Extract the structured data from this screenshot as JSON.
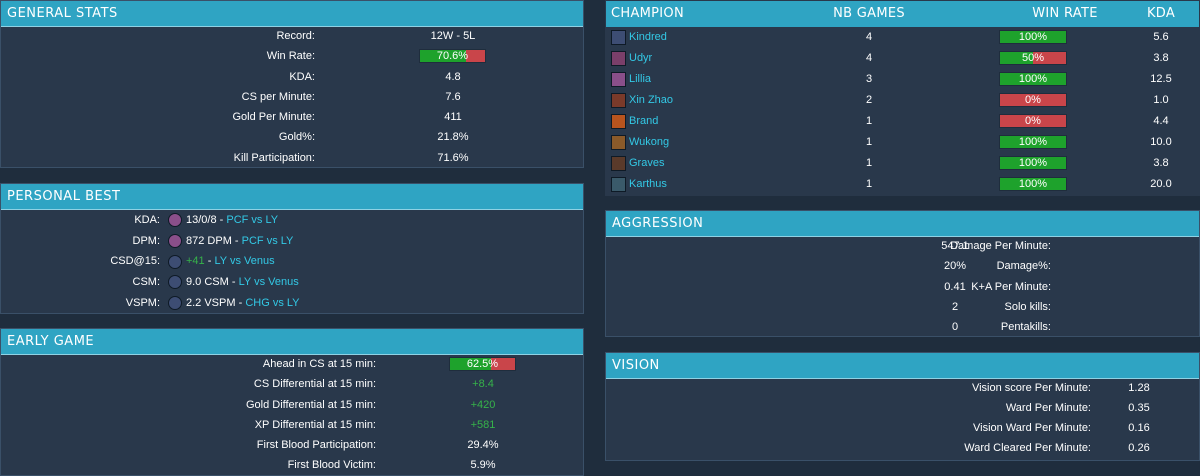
{
  "general": {
    "title": "GENERAL STATS",
    "rows": [
      {
        "label": "Record:",
        "value": "12W - 5L"
      },
      {
        "label": "Win Rate:",
        "value": "70.6%",
        "bar": true,
        "fraction": 0.706
      },
      {
        "label": "KDA:",
        "value": "4.8"
      },
      {
        "label": "CS per Minute:",
        "value": "7.6"
      },
      {
        "label": "Gold Per Minute:",
        "value": "411"
      },
      {
        "label": "Gold%:",
        "value": "21.8%"
      },
      {
        "label": "Kill Participation:",
        "value": "71.6%"
      }
    ]
  },
  "personal_best": {
    "title": "PERSONAL BEST",
    "rows": [
      {
        "label": "KDA:",
        "stat": "13/0/8",
        "sep": " - ",
        "match": "PCF vs LY",
        "icon": "lillia-icon"
      },
      {
        "label": "DPM:",
        "stat": "872 DPM",
        "sep": " - ",
        "match": "PCF vs LY",
        "icon": "lillia-icon"
      },
      {
        "label": "CSD@15:",
        "stat": "+41",
        "sep": " - ",
        "match": "LY vs Venus",
        "icon": "kindred-icon"
      },
      {
        "label": "CSM:",
        "stat": "9.0 CSM",
        "sep": " - ",
        "match": "LY vs Venus",
        "icon": "kindred-icon"
      },
      {
        "label": "VSPM:",
        "stat": "2.2 VSPM",
        "sep": " - ",
        "match": "CHG vs LY",
        "icon": "kindred-icon"
      }
    ]
  },
  "early_game": {
    "title": "EARLY GAME",
    "rows": [
      {
        "label": "Ahead in CS at 15 min:",
        "value": "62.5%",
        "bar": true,
        "fraction": 0.625
      },
      {
        "label": "CS Differential at 15 min:",
        "value": "+8.4",
        "green": true
      },
      {
        "label": "Gold Differential at 15 min:",
        "value": "+420",
        "green": true
      },
      {
        "label": "XP Differential at 15 min:",
        "value": "+581",
        "green": true
      },
      {
        "label": "First Blood Participation:",
        "value": "29.4%"
      },
      {
        "label": "First Blood Victim:",
        "value": "5.9%"
      }
    ]
  },
  "champions": {
    "headers": [
      "CHAMPION",
      "NB GAMES",
      "WIN RATE",
      "KDA"
    ],
    "rows": [
      {
        "name": "Kindred",
        "games": "4",
        "winrate": "100%",
        "fraction": 1.0,
        "kda": "5.6",
        "color": "#3d4d73"
      },
      {
        "name": "Udyr",
        "games": "4",
        "winrate": "50%",
        "fraction": 0.5,
        "kda": "3.8",
        "color": "#7a3f6a"
      },
      {
        "name": "Lillia",
        "games": "3",
        "winrate": "100%",
        "fraction": 1.0,
        "kda": "12.5",
        "color": "#8a4f8a"
      },
      {
        "name": "Xin Zhao",
        "games": "2",
        "winrate": "0%",
        "fraction": 0.0,
        "kda": "1.0",
        "color": "#7a3a2a"
      },
      {
        "name": "Brand",
        "games": "1",
        "winrate": "0%",
        "fraction": 0.0,
        "kda": "4.4",
        "color": "#b8541e"
      },
      {
        "name": "Wukong",
        "games": "1",
        "winrate": "100%",
        "fraction": 1.0,
        "kda": "10.0",
        "color": "#8a5a2a"
      },
      {
        "name": "Graves",
        "games": "1",
        "winrate": "100%",
        "fraction": 1.0,
        "kda": "3.8",
        "color": "#5a3a2a"
      },
      {
        "name": "Karthus",
        "games": "1",
        "winrate": "100%",
        "fraction": 1.0,
        "kda": "20.0",
        "color": "#3a5a6a"
      }
    ]
  },
  "aggression": {
    "title": "AGGRESSION",
    "rows": [
      {
        "label": "Damage Per Minute:",
        "value": "547.1"
      },
      {
        "label": "Damage%:",
        "value": "20%"
      },
      {
        "label": "K+A Per Minute:",
        "value": "0.41"
      },
      {
        "label": "Solo kills:",
        "value": "2"
      },
      {
        "label": "Pentakills:",
        "value": "0"
      }
    ]
  },
  "vision": {
    "title": "VISION",
    "rows": [
      {
        "label": "Vision score Per Minute:",
        "value": "1.28"
      },
      {
        "label": "Ward Per Minute:",
        "value": "0.35"
      },
      {
        "label": "Vision Ward Per Minute:",
        "value": "0.16"
      },
      {
        "label": "Ward Cleared Per Minute:",
        "value": "0.26"
      }
    ]
  },
  "colors": {
    "header": "#2fa4c3",
    "panel": "#29384b",
    "background": "#1f2d3d",
    "win": "#1ea22c",
    "loss": "#c9454a",
    "positive": "#36b34a",
    "link": "#33c9e6"
  }
}
